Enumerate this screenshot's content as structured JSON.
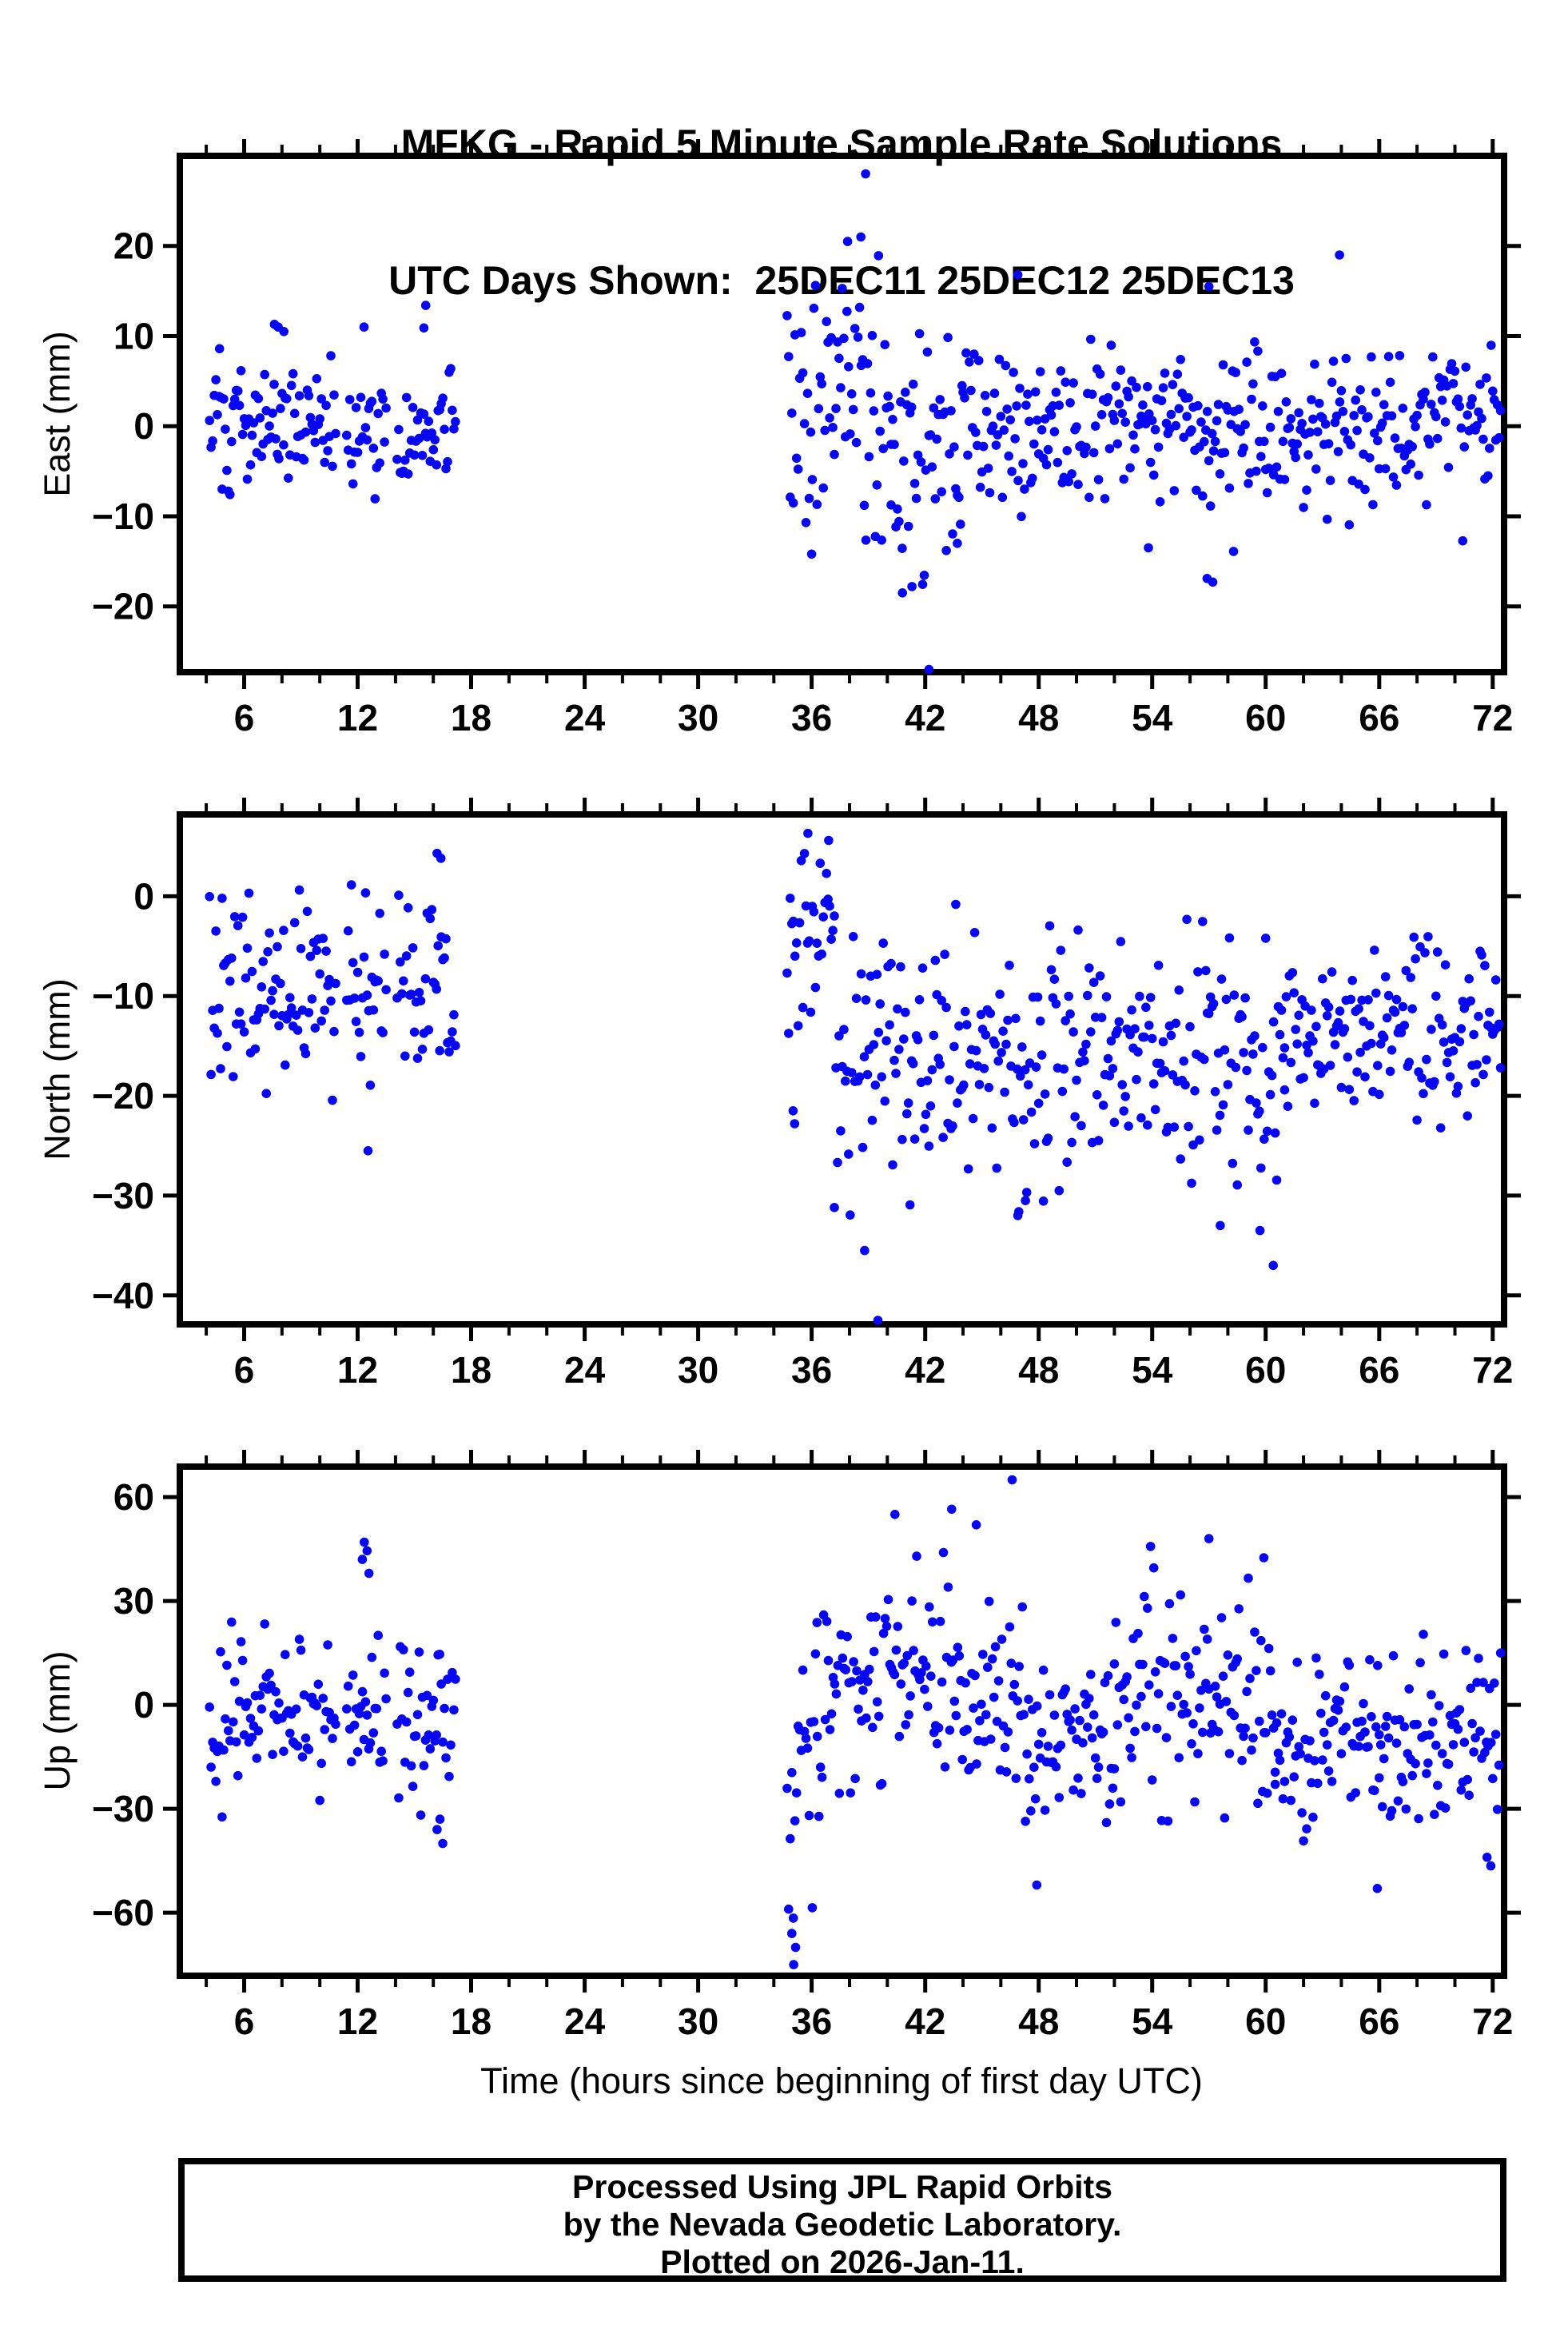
{
  "title": {
    "line1": "MFKG - Rapid 5 Minute Sample Rate Solutions",
    "line2": "UTC Days Shown:  25DEC11 25DEC12 25DEC13"
  },
  "footer": {
    "line1": "Processed Using JPL Rapid Orbits",
    "line2": "by the Nevada Geodetic Laboratory.",
    "line3": "Plotted on 2026-Jan-11."
  },
  "chart_data": {
    "type": "scatter",
    "title": "MFKG - Rapid 5 Minute Sample Rate Solutions",
    "subtitle": "UTC Days Shown:  25DEC11 25DEC12 25DEC13",
    "marker": {
      "shape": "circle",
      "color": "#0707f0",
      "radius_px": 5.8
    },
    "grid": false,
    "legend": "none",
    "sample_interval_hours": 0.08333,
    "sample_gaps": [
      [
        10.85,
        11.4
      ],
      [
        13.55,
        14.05
      ],
      [
        17.2,
        34.7
      ]
    ],
    "x_axis": {
      "title": "Time (hours since beginning of first day UTC)",
      "range": [
        2.6,
        72.6
      ],
      "major_tick": 6,
      "minor_tick": 2,
      "tick_labels": [
        6,
        12,
        18,
        24,
        30,
        36,
        42,
        48,
        54,
        60,
        66,
        72
      ]
    },
    "panels": [
      {
        "id": "east",
        "ylabel": "East (mm)",
        "ylim": [
          -27.3,
          30.0
        ],
        "yticks": [
          20,
          10,
          0,
          -10,
          -20
        ],
        "seed": 101,
        "segments": [
          [
            4.17,
            17.2,
            0,
            0,
            3.4,
            -10,
            12
          ],
          [
            34.7,
            40.2,
            2.5,
            2.5,
            7.5,
            -14,
            21
          ],
          [
            40.2,
            44.0,
            -1.5,
            -1.5,
            6.5,
            -19,
            12
          ],
          [
            44.0,
            72.45,
            0.5,
            0.5,
            4.3,
            -13,
            14
          ]
        ],
        "outliers": [
          [
            4.7,
            8.6
          ],
          [
            7.6,
            11.3
          ],
          [
            7.8,
            11.0
          ],
          [
            8.1,
            10.5
          ],
          [
            15.6,
            13.4
          ],
          [
            15.5,
            10.9
          ],
          [
            38.85,
            28
          ],
          [
            37.9,
            20.5
          ],
          [
            38.6,
            21
          ],
          [
            36.0,
            -14.2
          ],
          [
            40.8,
            -18.5
          ],
          [
            41.3,
            -17.8
          ],
          [
            42.2,
            -27
          ],
          [
            43.7,
            -13
          ],
          [
            46.9,
            16.8
          ],
          [
            53.8,
            -13.5
          ],
          [
            56.9,
            -16.9
          ],
          [
            57.0,
            15.5
          ],
          [
            57.2,
            -17.3
          ],
          [
            58.3,
            -13.9
          ],
          [
            63.9,
            19
          ]
        ]
      },
      {
        "id": "north",
        "ylabel": "North (mm)",
        "ylim": [
          -42.9,
          8.2
        ],
        "yticks": [
          0,
          -10,
          -20,
          -30,
          -40
        ],
        "seed": 202,
        "segments": [
          [
            4.17,
            17.2,
            -9.5,
            -9.5,
            4.8,
            -22,
            1.5
          ],
          [
            34.7,
            37.2,
            -4,
            -4,
            5.5,
            -14,
            7
          ],
          [
            37.2,
            48.0,
            -16,
            -16,
            6.5,
            -32,
            1
          ],
          [
            48.0,
            61.0,
            -16,
            -16,
            6.0,
            -31,
            -1
          ],
          [
            61.0,
            72.45,
            -13,
            -13,
            4.2,
            -24,
            -4
          ]
        ],
        "outliers": [
          [
            12.55,
            -25.5
          ],
          [
            16.2,
            4.3
          ],
          [
            16.4,
            3.8
          ],
          [
            35.02,
            -21.5
          ],
          [
            35.1,
            -22.8
          ],
          [
            35.8,
            6.3
          ],
          [
            36.9,
            5.6
          ],
          [
            38.8,
            -35.5
          ],
          [
            39.5,
            -42.5
          ],
          [
            46.9,
            -32
          ],
          [
            47.3,
            -30.5
          ],
          [
            57.6,
            -33
          ],
          [
            59.7,
            -33.5
          ],
          [
            60.4,
            -37
          ]
        ]
      },
      {
        "id": "up",
        "ylabel": "Up (mm)",
        "ylim": [
          -78.2,
          68.8
        ],
        "yticks": [
          60,
          30,
          0,
          -30,
          -60
        ],
        "seed": 303,
        "segments": [
          [
            4.17,
            17.2,
            -2,
            -2,
            11,
            -33,
            26
          ],
          [
            34.7,
            36.3,
            -30,
            -8,
            19,
            -75,
            25
          ],
          [
            36.3,
            47.5,
            6,
            6,
            16,
            -36,
            56
          ],
          [
            47.5,
            52.0,
            -14,
            -14,
            12,
            -48,
            12
          ],
          [
            52.0,
            60.5,
            3,
            3,
            16,
            -34,
            47
          ],
          [
            60.5,
            66.0,
            -12,
            -12,
            12,
            -44,
            20
          ],
          [
            66.0,
            72.45,
            -9,
            -9,
            13,
            -46,
            22
          ]
        ],
        "outliers": [
          [
            12.25,
            42
          ],
          [
            12.35,
            47
          ],
          [
            12.5,
            44.5
          ],
          [
            12.6,
            38
          ],
          [
            16.2,
            -36
          ],
          [
            16.35,
            -33
          ],
          [
            16.5,
            -40
          ],
          [
            34.95,
            -66
          ],
          [
            35.05,
            -75
          ],
          [
            35.15,
            -70
          ],
          [
            40.4,
            55
          ],
          [
            43.4,
            56.5
          ],
          [
            44.7,
            52
          ],
          [
            46.6,
            65
          ],
          [
            47.9,
            -52
          ],
          [
            57.0,
            48
          ],
          [
            59.9,
            42.5
          ],
          [
            65.9,
            -53
          ],
          [
            71.7,
            -44
          ],
          [
            71.9,
            -46.5
          ]
        ]
      }
    ]
  }
}
